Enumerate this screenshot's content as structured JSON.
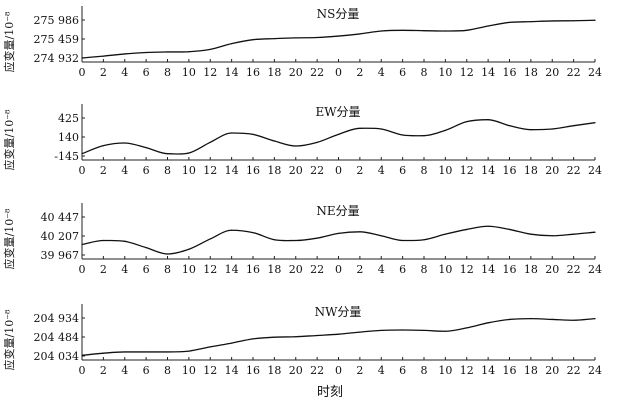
{
  "chart_data": [
    {
      "type": "line",
      "title": "NS分量",
      "ylabel": "应变量/10⁻⁸",
      "xlabel": "",
      "x_ticks": [
        "0",
        "2",
        "4",
        "6",
        "8",
        "10",
        "12",
        "14",
        "16",
        "18",
        "20",
        "22",
        "0",
        "2",
        "4",
        "6",
        "8",
        "10",
        "12",
        "14",
        "16",
        "18",
        "20",
        "22",
        "24"
      ],
      "y_ticks": [
        "274 932",
        "275 459",
        "275 986"
      ],
      "ylim": [
        274932,
        275986
      ],
      "x": [
        0,
        2,
        4,
        6,
        8,
        10,
        12,
        14,
        16,
        18,
        20,
        22,
        24,
        26,
        28,
        30,
        32,
        34,
        36,
        38,
        40,
        42,
        44,
        46,
        48
      ],
      "values": [
        274932,
        274985,
        275045,
        275085,
        275100,
        275105,
        275170,
        275330,
        275440,
        275470,
        275490,
        275500,
        275540,
        275600,
        275680,
        275700,
        275690,
        275680,
        275700,
        275820,
        275920,
        275940,
        275960,
        275965,
        275980
      ]
    },
    {
      "type": "line",
      "title": "EW分量",
      "ylabel": "应变量/10⁻⁸",
      "xlabel": "",
      "x_ticks": [
        "0",
        "2",
        "4",
        "6",
        "8",
        "10",
        "12",
        "14",
        "16",
        "18",
        "20",
        "22",
        "0",
        "2",
        "4",
        "6",
        "8",
        "10",
        "12",
        "14",
        "16",
        "18",
        "20",
        "22",
        "24"
      ],
      "y_ticks": [
        "-145",
        "140",
        "425"
      ],
      "ylim": [
        -145,
        425
      ],
      "x": [
        0,
        2,
        4,
        6,
        8,
        10,
        12,
        14,
        16,
        18,
        20,
        22,
        24,
        26,
        28,
        30,
        32,
        34,
        36,
        38,
        40,
        42,
        44,
        46,
        48
      ],
      "values": [
        -110,
        10,
        50,
        -20,
        -110,
        -100,
        60,
        200,
        180,
        80,
        5,
        60,
        180,
        270,
        260,
        170,
        160,
        240,
        370,
        400,
        310,
        250,
        260,
        310,
        355
      ]
    },
    {
      "type": "line",
      "title": "NE分量",
      "ylabel": "应变量/10⁻⁸",
      "xlabel": "",
      "x_ticks": [
        "0",
        "2",
        "4",
        "6",
        "8",
        "10",
        "12",
        "14",
        "16",
        "18",
        "20",
        "22",
        "0",
        "2",
        "4",
        "6",
        "8",
        "10",
        "12",
        "14",
        "16",
        "18",
        "20",
        "22",
        "24"
      ],
      "y_ticks": [
        "39 967",
        "40 207",
        "40 447"
      ],
      "ylim": [
        39967,
        40447
      ],
      "x": [
        0,
        2,
        4,
        6,
        8,
        10,
        12,
        14,
        16,
        18,
        20,
        22,
        24,
        26,
        28,
        30,
        32,
        34,
        36,
        38,
        40,
        42,
        44,
        46,
        48
      ],
      "values": [
        40100,
        40150,
        40140,
        40060,
        39980,
        40040,
        40170,
        40280,
        40250,
        40160,
        40150,
        40180,
        40240,
        40260,
        40210,
        40150,
        40160,
        40230,
        40290,
        40330,
        40290,
        40230,
        40210,
        40230,
        40255
      ]
    },
    {
      "type": "line",
      "title": "NW分量",
      "ylabel": "应变量/10⁻⁸",
      "xlabel": "时刻",
      "x_ticks": [
        "0",
        "2",
        "4",
        "6",
        "8",
        "10",
        "12",
        "14",
        "16",
        "18",
        "20",
        "22",
        "0",
        "2",
        "4",
        "6",
        "8",
        "10",
        "12",
        "14",
        "16",
        "18",
        "20",
        "22",
        "24"
      ],
      "y_ticks": [
        "204 034",
        "204 484",
        "204 934"
      ],
      "ylim": [
        204034,
        204934
      ],
      "x": [
        0,
        2,
        4,
        6,
        8,
        10,
        12,
        14,
        16,
        18,
        20,
        22,
        24,
        26,
        28,
        30,
        32,
        34,
        36,
        38,
        40,
        42,
        44,
        46,
        48
      ],
      "values": [
        204050,
        204100,
        204130,
        204130,
        204130,
        204150,
        204250,
        204340,
        204440,
        204480,
        204490,
        204520,
        204550,
        204600,
        204640,
        204650,
        204640,
        204620,
        204700,
        204820,
        204900,
        204920,
        204900,
        204880,
        204920
      ]
    }
  ]
}
